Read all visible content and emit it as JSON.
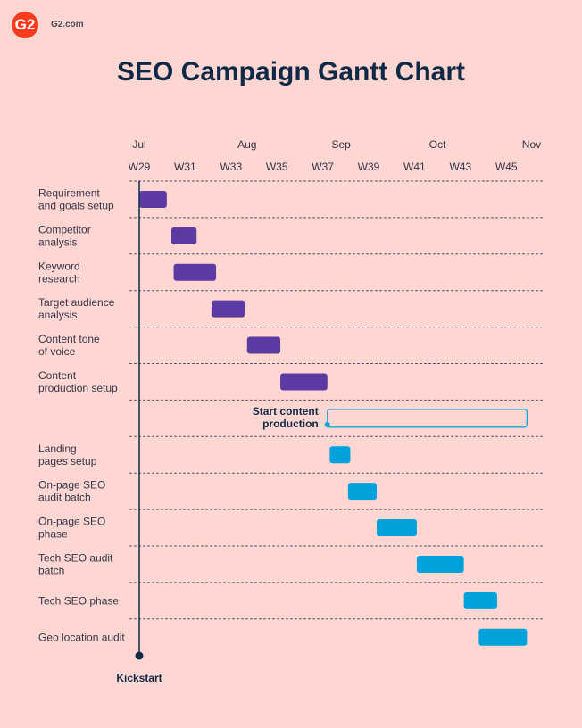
{
  "header": {
    "logo_text": "G2",
    "site": "G2.com",
    "title": "SEO Campaign Gantt Chart"
  },
  "chart_data": {
    "type": "gantt",
    "title": "SEO Campaign Gantt Chart",
    "x_unit": "week",
    "xlim": [
      29,
      47
    ],
    "month_ticks": [
      {
        "label": "Jul",
        "week": 29
      },
      {
        "label": "Aug",
        "week": 33.7
      },
      {
        "label": "Sep",
        "week": 37.8
      },
      {
        "label": "Oct",
        "week": 42
      },
      {
        "label": "Nov",
        "week": 46.1
      }
    ],
    "week_ticks": [
      {
        "label": "W29",
        "week": 29
      },
      {
        "label": "W31",
        "week": 31
      },
      {
        "label": "W33",
        "week": 33
      },
      {
        "label": "W35",
        "week": 35
      },
      {
        "label": "W37",
        "week": 37
      },
      {
        "label": "W39",
        "week": 39
      },
      {
        "label": "W41",
        "week": 41
      },
      {
        "label": "W43",
        "week": 43
      },
      {
        "label": "W45",
        "week": 45
      }
    ],
    "colors": {
      "phase1": "#5b3aa1",
      "phase2": "#00a2db",
      "milestone": "#0f2a47"
    },
    "tasks": [
      {
        "label": [
          "Requirement",
          "and goals setup"
        ],
        "start": 29,
        "end": 30.2,
        "group": "phase1"
      },
      {
        "label": [
          "Competitor",
          "analysis"
        ],
        "start": 30.4,
        "end": 31.5,
        "group": "phase1"
      },
      {
        "label": [
          "Keyword",
          "research"
        ],
        "start": 30.5,
        "end": 32.35,
        "group": "phase1"
      },
      {
        "label": [
          "Target audience",
          "analysis"
        ],
        "start": 32.15,
        "end": 33.6,
        "group": "phase1"
      },
      {
        "label": [
          "Content tone",
          "of voice"
        ],
        "start": 33.7,
        "end": 35.15,
        "group": "phase1"
      },
      {
        "label": [
          "Content",
          "production setup"
        ],
        "start": 35.15,
        "end": 37.2,
        "group": "phase1"
      },
      {
        "label": [
          "Start content",
          "production"
        ],
        "start": 37.2,
        "end": 45.9,
        "group": "outline",
        "label_position": "inline"
      },
      {
        "label": [
          "Landing",
          "pages setup"
        ],
        "start": 37.3,
        "end": 38.2,
        "group": "phase2"
      },
      {
        "label": [
          "On-page SEO",
          "audit batch"
        ],
        "start": 38.1,
        "end": 39.35,
        "group": "phase2"
      },
      {
        "label": [
          "On-page SEO",
          "phase"
        ],
        "start": 39.35,
        "end": 41.1,
        "group": "phase2"
      },
      {
        "label": [
          "Tech SEO audit",
          "batch"
        ],
        "start": 41.1,
        "end": 43.15,
        "group": "phase2"
      },
      {
        "label": [
          "Tech SEO phase"
        ],
        "start": 43.15,
        "end": 44.6,
        "group": "phase2"
      },
      {
        "label": [
          "Geo location audit"
        ],
        "start": 43.8,
        "end": 45.9,
        "group": "phase2"
      }
    ],
    "milestone": {
      "label": "Kickstart",
      "week": 29
    }
  }
}
